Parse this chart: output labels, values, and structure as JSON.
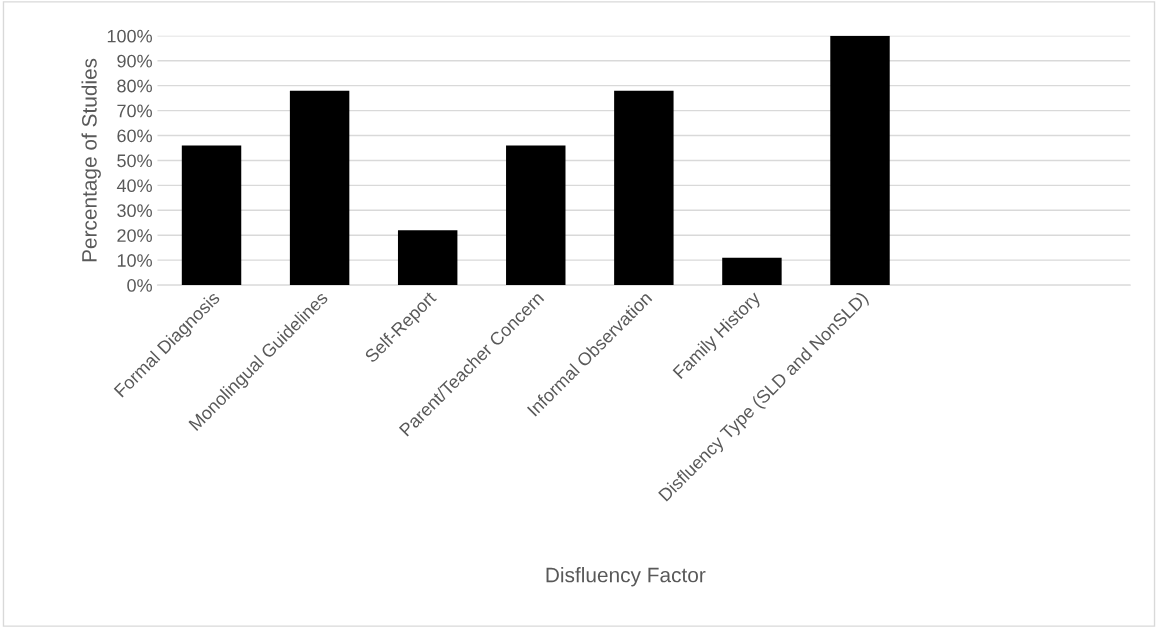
{
  "chart_data": {
    "type": "bar",
    "xlabel": "Disfluency Factor",
    "ylabel": "Percentage of Studies",
    "categories": [
      "Formal Diagnosis",
      "Monolingual Guidelines",
      "Self-Report",
      "Parent/Teacher Concern",
      "Informal Observation",
      "Family History",
      "Disfluency Type (SLD and NonSLD)",
      null,
      null
    ],
    "values": [
      56,
      78,
      22,
      56,
      78,
      11,
      100,
      null,
      null
    ],
    "color": "#000000",
    "ylim": [
      0,
      100
    ],
    "yticks": [
      {
        "value": 0,
        "label": "0%"
      },
      {
        "value": 10,
        "label": "10%"
      },
      {
        "value": 20,
        "label": "20%"
      },
      {
        "value": 30,
        "label": "30%"
      },
      {
        "value": 40,
        "label": "40%"
      },
      {
        "value": 50,
        "label": "50%"
      },
      {
        "value": 60,
        "label": "60%"
      },
      {
        "value": 70,
        "label": "70%"
      },
      {
        "value": 80,
        "label": "80%"
      },
      {
        "value": 90,
        "label": "90%"
      },
      {
        "value": 100,
        "label": "100%"
      }
    ],
    "grid": "y"
  }
}
